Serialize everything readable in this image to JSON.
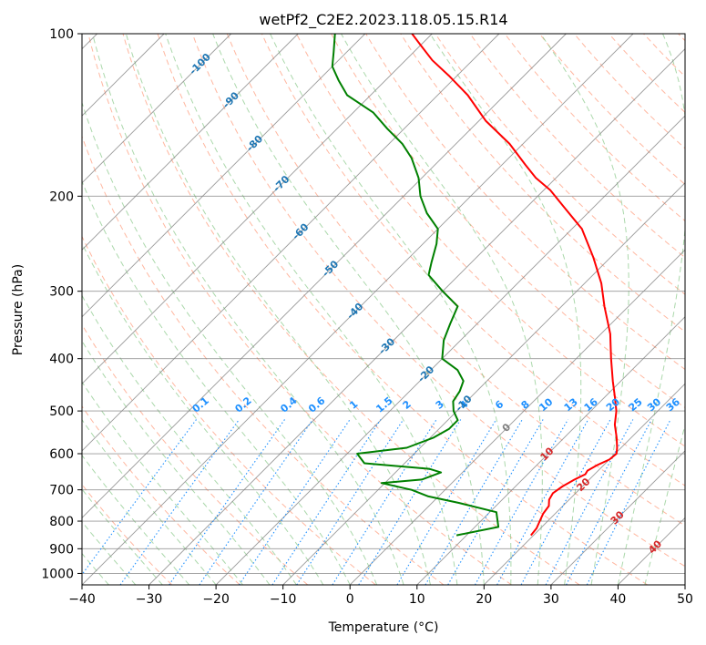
{
  "chart_data": {
    "type": "line",
    "title": "wetPf2_C2E2.2023.118.05.15.R14",
    "xlabel": "Temperature (°C)",
    "ylabel": "Pressure (hPa)",
    "xlim": [
      -40,
      50
    ],
    "ylim": [
      1050,
      100
    ],
    "y_scale": "log",
    "skew": true,
    "grid": true,
    "x_ticks": [
      -40,
      -30,
      -20,
      -10,
      0,
      10,
      20,
      30,
      40,
      50
    ],
    "x_tick_labels": [
      "−40",
      "−30",
      "−20",
      "−10",
      "0",
      "10",
      "20",
      "30",
      "40",
      "50"
    ],
    "y_ticks": [
      100,
      200,
      300,
      400,
      500,
      600,
      700,
      800,
      900,
      1000
    ],
    "y_tick_labels": [
      "100",
      "200",
      "300",
      "400",
      "500",
      "600",
      "700",
      "800",
      "900",
      "1000"
    ],
    "colors": {
      "temperature": "#ff0000",
      "dewpoint": "#008000",
      "dry_adiabat": "#ff9f80",
      "moist_adiabat": "#88c888",
      "mixing_ratio": "#1e90ff",
      "isotherm": "#808080",
      "upper_isotherm_label": "#1f77b4",
      "lower_isotherm_label": "#d62728"
    },
    "series": [
      {
        "key": "temperature",
        "points": [
          [
            19.6,
            850
          ],
          [
            19.4,
            825
          ],
          [
            18.8,
            800
          ],
          [
            18.2,
            775
          ],
          [
            17.9,
            750
          ],
          [
            17.0,
            730
          ],
          [
            16.6,
            710
          ],
          [
            17.0,
            690
          ],
          [
            17.8,
            670
          ],
          [
            18.6,
            655
          ],
          [
            18.4,
            645
          ],
          [
            19.0,
            630
          ],
          [
            20.0,
            615
          ],
          [
            20.2,
            600
          ],
          [
            19.4,
            585
          ],
          [
            17.8,
            560
          ],
          [
            15.6,
            530
          ],
          [
            13.8,
            500
          ],
          [
            11.4,
            470
          ],
          [
            8.8,
            440
          ],
          [
            5.2,
            400
          ],
          [
            1.4,
            360
          ],
          [
            -3.6,
            320
          ],
          [
            -7.5,
            290
          ],
          [
            -12.5,
            260
          ],
          [
            -18.5,
            230
          ],
          [
            -24.3,
            210
          ],
          [
            -29.0,
            195
          ],
          [
            -33.0,
            185
          ],
          [
            -36.5,
            175
          ],
          [
            -42.0,
            160
          ],
          [
            -49.0,
            145
          ],
          [
            -55.5,
            130
          ],
          [
            -61.0,
            120
          ],
          [
            -66.0,
            112
          ],
          [
            -70.0,
            105
          ],
          [
            -73.0,
            100
          ]
        ]
      },
      {
        "key": "dewpoint",
        "points": [
          [
            8.5,
            850
          ],
          [
            13.5,
            820
          ],
          [
            11.0,
            770
          ],
          [
            4.0,
            740
          ],
          [
            -1.5,
            720
          ],
          [
            -5.0,
            700
          ],
          [
            -10.5,
            680
          ],
          [
            -5.0,
            670
          ],
          [
            -3.2,
            650
          ],
          [
            -5.5,
            640
          ],
          [
            -16.0,
            625
          ],
          [
            -18.5,
            600
          ],
          [
            -12.0,
            585
          ],
          [
            -9.5,
            560
          ],
          [
            -8.5,
            540
          ],
          [
            -8.5,
            520
          ],
          [
            -10.5,
            500
          ],
          [
            -12.0,
            480
          ],
          [
            -12.5,
            460
          ],
          [
            -13.5,
            440
          ],
          [
            -16.0,
            420
          ],
          [
            -20.0,
            400
          ],
          [
            -22.5,
            370
          ],
          [
            -24.0,
            345
          ],
          [
            -25.5,
            320
          ],
          [
            -30.0,
            300
          ],
          [
            -34.5,
            280
          ],
          [
            -36.0,
            265
          ],
          [
            -38.0,
            245
          ],
          [
            -40.0,
            230
          ],
          [
            -44.0,
            215
          ],
          [
            -47.5,
            200
          ],
          [
            -50.5,
            185
          ],
          [
            -54.5,
            170
          ],
          [
            -58.0,
            160
          ],
          [
            -62.5,
            150
          ],
          [
            -67.0,
            140
          ],
          [
            -73.5,
            130
          ],
          [
            -77.0,
            122
          ],
          [
            -80.0,
            115
          ],
          [
            -82.0,
            108
          ],
          [
            -84.5,
            100
          ]
        ]
      }
    ],
    "upper_isotherm_labels": [
      {
        "t": -100,
        "text": "-100",
        "p": 114
      },
      {
        "t": -90,
        "text": "-90",
        "p": 133
      },
      {
        "t": -80,
        "text": "-80",
        "p": 160
      },
      {
        "t": -70,
        "text": "-70",
        "p": 190
      },
      {
        "t": -60,
        "text": "-60",
        "p": 233
      },
      {
        "t": -50,
        "text": "-50",
        "p": 273
      },
      {
        "t": -40,
        "text": "-40",
        "p": 327
      },
      {
        "t": -30,
        "text": "-30",
        "p": 380
      },
      {
        "t": -20,
        "text": "-20",
        "p": 428
      },
      {
        "t": -10,
        "text": "-10",
        "p": 485
      }
    ],
    "lower_isotherm_labels": [
      {
        "t": 0,
        "text": "0",
        "p": 538
      },
      {
        "t": 10,
        "text": "10",
        "p": 602
      },
      {
        "t": 20,
        "text": "20",
        "p": 686
      },
      {
        "t": 30,
        "text": "30",
        "p": 790
      },
      {
        "t": 40,
        "text": "40",
        "p": 895
      }
    ],
    "mixing_ratio_lines": [
      0.1,
      0.2,
      0.4,
      0.6,
      1,
      1.5,
      2,
      3,
      4,
      6,
      8,
      10,
      13,
      16,
      20,
      25,
      30,
      36
    ],
    "mixing_ratio_labels": [
      "0.1",
      "0.2",
      "0.4",
      "0.6",
      "1",
      "1.5",
      "2",
      "3",
      "4",
      "6",
      "8",
      "10",
      "13",
      "16",
      "20",
      "25",
      "30",
      "36"
    ]
  }
}
